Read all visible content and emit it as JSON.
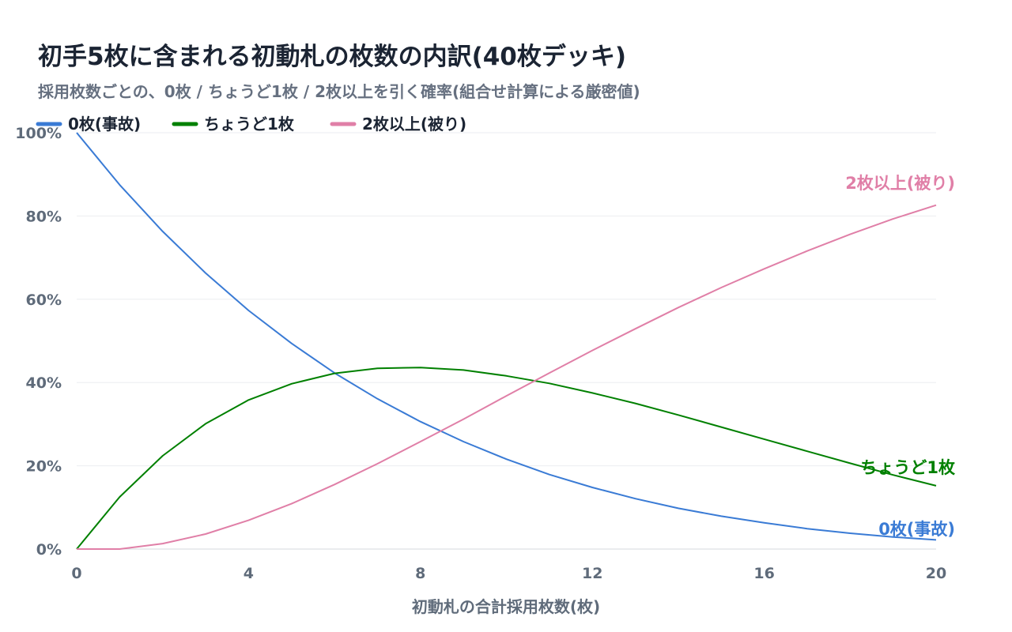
{
  "chart_data": {
    "type": "line",
    "title": "初手5枚に含まれる初動札の枚数の内訳(40枚デッキ)",
    "subtitle": "採用枚数ごとの、0枚 / ちょうど1枚 / 2枚以上を引く確率(組合せ計算による厳密値)",
    "xlabel": "初動札の合計採用枚数(枚)",
    "ylabel": "",
    "xlim": [
      0,
      20
    ],
    "ylim": [
      0,
      100
    ],
    "x_ticks": [
      "0",
      "4",
      "8",
      "12",
      "16",
      "20"
    ],
    "y_ticks": [
      "0%",
      "20%",
      "40%",
      "60%",
      "80%",
      "100%"
    ],
    "grid": true,
    "legend_position": "top-left",
    "x": [
      0,
      1,
      2,
      3,
      4,
      5,
      6,
      7,
      8,
      9,
      10,
      11,
      12,
      13,
      14,
      15,
      16,
      17,
      18,
      19,
      20
    ],
    "series": [
      {
        "name": "0枚(事故)",
        "color": "#3a7bd5",
        "values": [
          100,
          87.5,
          76.3,
          66.3,
          57.3,
          49.4,
          42.3,
          36.1,
          30.6,
          25.8,
          21.6,
          17.9,
          14.8,
          12.1,
          9.8,
          7.9,
          6.3,
          4.9,
          3.8,
          2.9,
          2.2
        ]
      },
      {
        "name": "ちょうど1枚",
        "color": "#008000",
        "values": [
          0,
          12.5,
          22.4,
          30.1,
          35.8,
          39.7,
          42.2,
          43.4,
          43.6,
          43.0,
          41.6,
          39.8,
          37.5,
          35.0,
          32.2,
          29.3,
          26.4,
          23.5,
          20.6,
          17.8,
          15.2
        ]
      },
      {
        "name": "2枚以上(被り)",
        "color": "#e07fa7",
        "values": [
          0,
          0,
          1.3,
          3.6,
          6.9,
          10.9,
          15.5,
          20.5,
          25.8,
          31.2,
          36.8,
          42.3,
          47.7,
          52.9,
          58.0,
          62.8,
          67.3,
          71.6,
          75.6,
          79.3,
          82.6
        ]
      }
    ]
  }
}
